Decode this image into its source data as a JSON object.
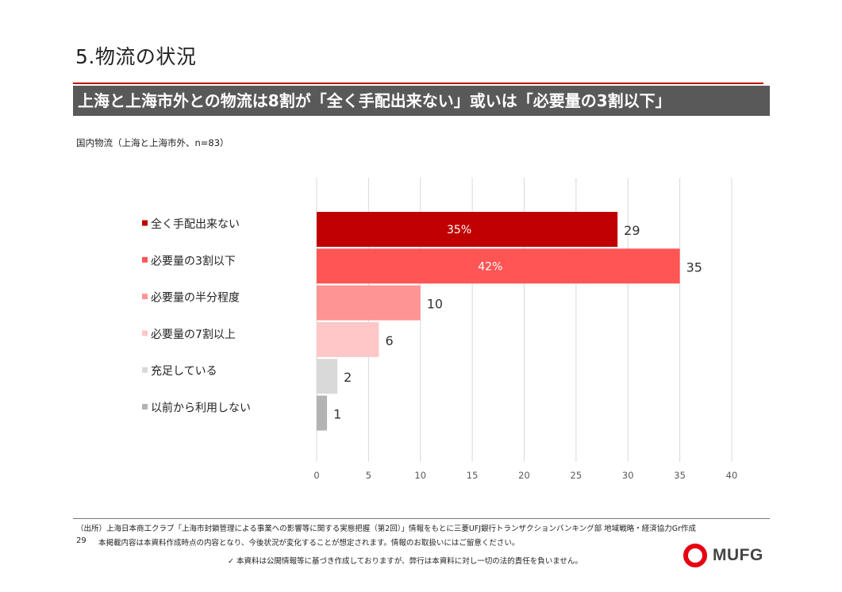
{
  "section_title": "5.物流の状況",
  "banner": "上海と上海市外との物流は8割が「全く手配出来ない」或いは「必要量の3割以下」",
  "chart_subtitle": "国内物流（上海と上海市外、n=83）",
  "chart_data": {
    "type": "bar",
    "orientation": "horizontal",
    "categories": [
      "全く手配出来ない",
      "必要量の3割以下",
      "必要量の半分程度",
      "必要量の7割以上",
      "充足している",
      "以前から利用しない"
    ],
    "values": [
      29,
      35,
      10,
      6,
      2,
      1
    ],
    "colors": [
      "#c00000",
      "#ff5555",
      "#ff9494",
      "#ffc7c7",
      "#d9d9d9",
      "#b3b3b3"
    ],
    "bar_percent_labels": [
      "35%",
      "42%",
      "",
      "",
      "",
      ""
    ],
    "xlim": [
      0,
      40
    ],
    "xticks": [
      0,
      5,
      10,
      15,
      20,
      25,
      30,
      35,
      40
    ],
    "grid": true,
    "legend": "left-of-bars",
    "title": "国内物流（上海と上海市外、n=83）"
  },
  "footer": {
    "source": "（出所）上海日本商工クラブ「上海市封鎖管理による事業への影響等に関する実態把握（第2回）」情報をもとに三菱UFJ銀行トランザクションバンキング部 地域戦略・経済協力Gr作成",
    "page_number": "29",
    "note": "本掲載内容は本資料作成時点の内容となり、今後状況が変化することが想定されます。情報のお取扱いにはご留意ください。",
    "disclaimer": "✓ 本資料は公開情報等に基づき作成しておりますが、弊行は本資料に対し一切の法的責任を負いません。"
  },
  "logo": {
    "text": "MUFG",
    "color": "#e60012",
    "icon": "mufg-ring-icon"
  }
}
